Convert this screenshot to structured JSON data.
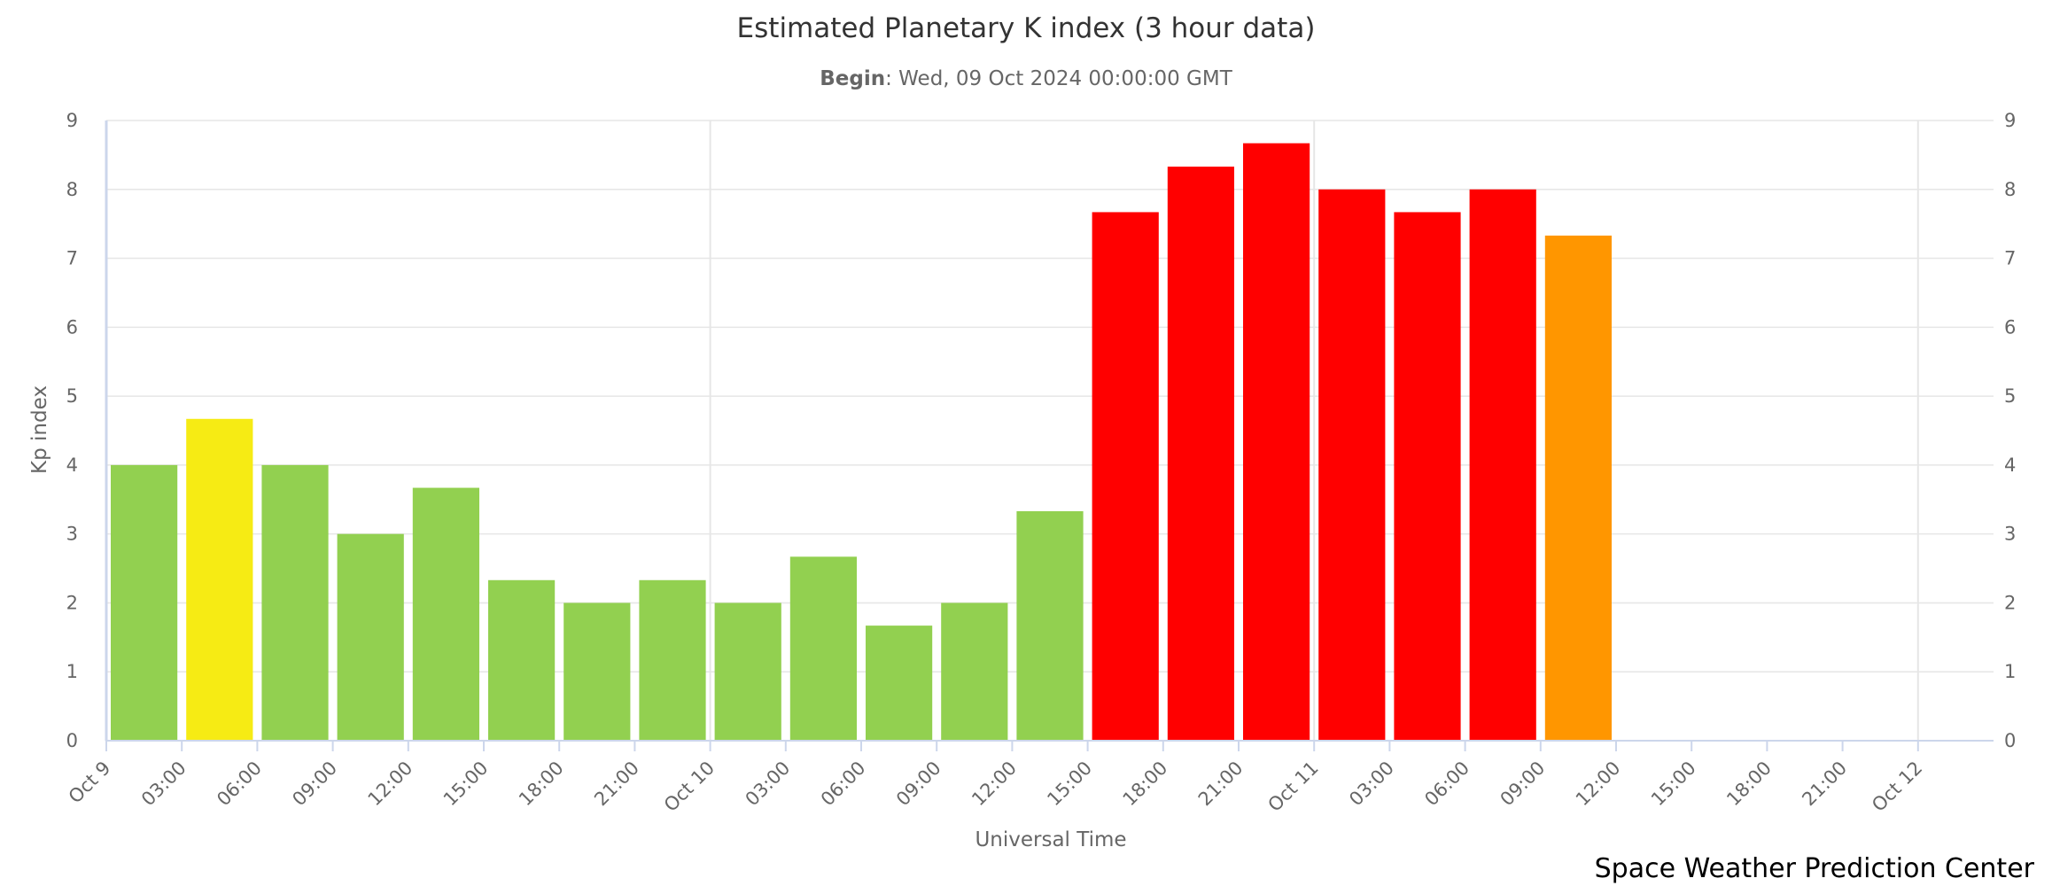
{
  "chart_data": {
    "type": "bar",
    "title": "Estimated Planetary K index (3 hour data)",
    "subtitle_label": "Begin",
    "subtitle_value": ": Wed, 09 Oct 2024 00:00:00 GMT",
    "xlabel": "Universal Time",
    "ylabel": "Kp index",
    "ylim": [
      0,
      9
    ],
    "yticks": [
      "0",
      "1",
      "2",
      "3",
      "4",
      "5",
      "6",
      "7",
      "8",
      "9"
    ],
    "x_ticks": [
      "Oct 9",
      "03:00",
      "06:00",
      "09:00",
      "12:00",
      "15:00",
      "18:00",
      "21:00",
      "Oct 10",
      "03:00",
      "06:00",
      "09:00",
      "12:00",
      "15:00",
      "18:00",
      "21:00",
      "Oct 11",
      "03:00",
      "06:00",
      "09:00",
      "12:00",
      "15:00",
      "18:00",
      "21:00",
      "Oct 12"
    ],
    "x_range_hours": [
      0,
      75
    ],
    "interval_hours": 3,
    "values": [
      4.0,
      4.67,
      4.0,
      3.0,
      3.67,
      2.33,
      2.0,
      2.33,
      2.0,
      2.67,
      1.67,
      2.0,
      3.33,
      7.67,
      8.33,
      8.67,
      8.0,
      7.67,
      8.0,
      7.33
    ],
    "bar_colors": [
      "#92d050",
      "#f6eb14",
      "#92d050",
      "#92d050",
      "#92d050",
      "#92d050",
      "#92d050",
      "#92d050",
      "#92d050",
      "#92d050",
      "#92d050",
      "#92d050",
      "#92d050",
      "#ff0000",
      "#ff0000",
      "#ff0000",
      "#ff0000",
      "#ff0000",
      "#ff0000",
      "#ff9600"
    ],
    "day_gridlines": [
      "Oct 10",
      "Oct 11",
      "Oct 12"
    ],
    "grid": true,
    "legend": "none",
    "gridline_color": "#e6e6e6",
    "axis_color": "#ccd6eb"
  },
  "credit": "Space Weather Prediction Center"
}
